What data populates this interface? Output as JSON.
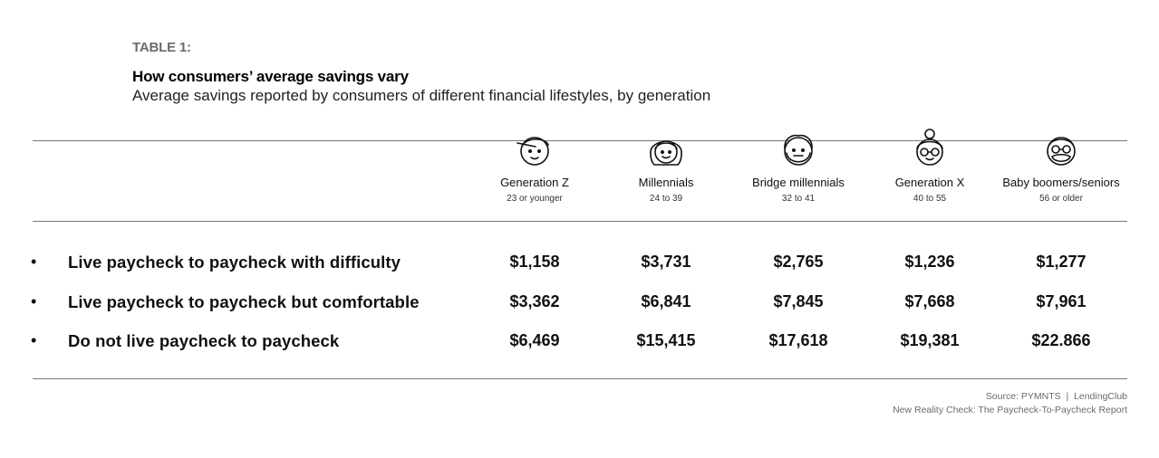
{
  "header": {
    "table_label": "TABLE 1:",
    "title": "How consumers’ average savings vary",
    "subtitle": "Average savings reported by consumers of different financial lifestyles, by generation"
  },
  "generations": [
    {
      "name": "Generation Z",
      "age": "23 or younger",
      "icon": "gen-z-face-icon"
    },
    {
      "name": "Millennials",
      "age": "24 to 39",
      "icon": "millennial-face-icon"
    },
    {
      "name": "Bridge millennials",
      "age": "32 to 41",
      "icon": "bridge-millennial-face-icon"
    },
    {
      "name": "Generation X",
      "age": "40 to 55",
      "icon": "gen-x-face-icon"
    },
    {
      "name": "Baby boomers/seniors",
      "age": "56 or older",
      "icon": "boomer-face-icon"
    }
  ],
  "rows": [
    {
      "bullet": "•",
      "label": "Live paycheck to paycheck with difficulty",
      "values": [
        "$1,158",
        "$3,731",
        "$2,765",
        "$1,236",
        "$1,277"
      ]
    },
    {
      "bullet": "•",
      "label": "Live paycheck to paycheck but comfortable",
      "values": [
        "$3,362",
        "$6,841",
        "$7,845",
        "$7,668",
        "$7,961"
      ]
    },
    {
      "bullet": "•",
      "label": "Do not live paycheck to paycheck",
      "values": [
        "$6,469",
        "$15,415",
        "$17,618",
        "$19,381",
        "$22.866"
      ]
    }
  ],
  "source": {
    "line1": "Source: PYMNTS  |  LendingClub",
    "line2": "New Reality Check: The Paycheck-To-Paycheck Report"
  }
}
